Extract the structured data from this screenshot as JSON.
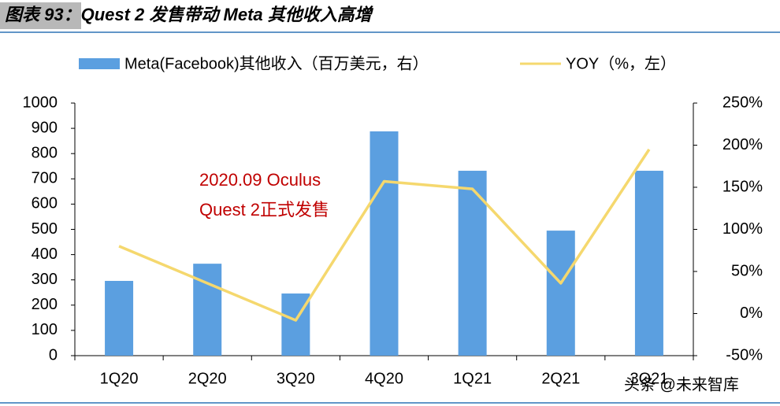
{
  "chart_data": {
    "type": "bar_line",
    "title": "图表 93：Quest 2 发售带动 Meta 其他收入高增",
    "categories": [
      "1Q20",
      "2Q20",
      "3Q20",
      "4Q20",
      "1Q21",
      "2Q21",
      "3Q21"
    ],
    "series": [
      {
        "name": "Meta(Facebook)其他收入（百万美元，右）",
        "type": "bar",
        "color": "#5b9fe0",
        "values": [
          296,
          364,
          246,
          888,
          732,
          495,
          732
        ]
      },
      {
        "name": "YOY（%，左）",
        "type": "line",
        "axis": "y2",
        "color": "#f5d86e",
        "values": [
          80,
          36,
          -8,
          157,
          148,
          36,
          195
        ]
      }
    ],
    "ylim": [
      0,
      1000
    ],
    "yticks": [
      0,
      100,
      200,
      300,
      400,
      500,
      600,
      700,
      800,
      900,
      1000
    ],
    "y2lim": [
      -50,
      250
    ],
    "y2ticks": [
      {
        "value": -50,
        "label": "-50%"
      },
      {
        "value": 0,
        "label": "0%"
      },
      {
        "value": 50,
        "label": "50%"
      },
      {
        "value": 100,
        "label": "100%"
      },
      {
        "value": 150,
        "label": "150%"
      },
      {
        "value": 200,
        "label": "200%"
      },
      {
        "value": 250,
        "label": "250%"
      }
    ],
    "annotation": [
      "2020.09  Oculus",
      "Quest 2正式发售"
    ],
    "watermark": "头条 @未来智库",
    "legend": "top"
  }
}
